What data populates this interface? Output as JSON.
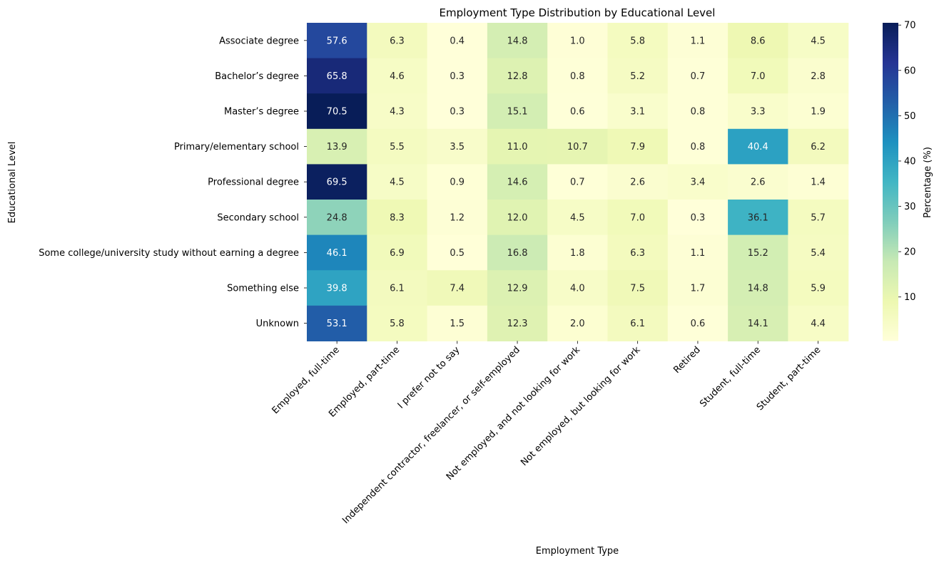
{
  "chart_data": {
    "type": "heatmap",
    "title": "Employment Type Distribution by Educational Level",
    "xlabel": "Employment Type",
    "ylabel": "Educational Level",
    "x_categories": [
      "Employed, full-time",
      "Employed, part-time",
      "I prefer not to say",
      "Independent contractor, freelancer, or self-employed",
      "Not employed, and not looking for work",
      "Not employed, but looking for work",
      "Retired",
      "Student, full-time",
      "Student, part-time"
    ],
    "y_categories": [
      "Associate degree",
      "Bachelor’s degree",
      "Master’s degree",
      "Primary/elementary school",
      "Professional degree",
      "Secondary school",
      "Some college/university study without earning a degree",
      "Something else",
      "Unknown"
    ],
    "values": [
      [
        57.6,
        6.3,
        0.4,
        14.8,
        1.0,
        5.8,
        1.1,
        8.6,
        4.5
      ],
      [
        65.8,
        4.6,
        0.3,
        12.8,
        0.8,
        5.2,
        0.7,
        7.0,
        2.8
      ],
      [
        70.5,
        4.3,
        0.3,
        15.1,
        0.6,
        3.1,
        0.8,
        3.3,
        1.9
      ],
      [
        13.9,
        5.5,
        3.5,
        11.0,
        10.7,
        7.9,
        0.8,
        40.4,
        6.2
      ],
      [
        69.5,
        4.5,
        0.9,
        14.6,
        0.7,
        2.6,
        3.4,
        2.6,
        1.4
      ],
      [
        24.8,
        8.3,
        1.2,
        12.0,
        4.5,
        7.0,
        0.3,
        36.1,
        5.7
      ],
      [
        46.1,
        6.9,
        0.5,
        16.8,
        1.8,
        6.3,
        1.1,
        15.2,
        5.4
      ],
      [
        39.8,
        6.1,
        7.4,
        12.9,
        4.0,
        7.5,
        1.7,
        14.8,
        5.9
      ],
      [
        53.1,
        5.8,
        1.5,
        12.3,
        2.0,
        6.1,
        0.6,
        14.1,
        4.4
      ]
    ],
    "colorbar": {
      "label": "Percentage (%)",
      "range": [
        0.3,
        70.5
      ],
      "ticks": [
        10,
        20,
        30,
        40,
        50,
        60,
        70
      ],
      "colormap": "YlGnBu"
    }
  }
}
